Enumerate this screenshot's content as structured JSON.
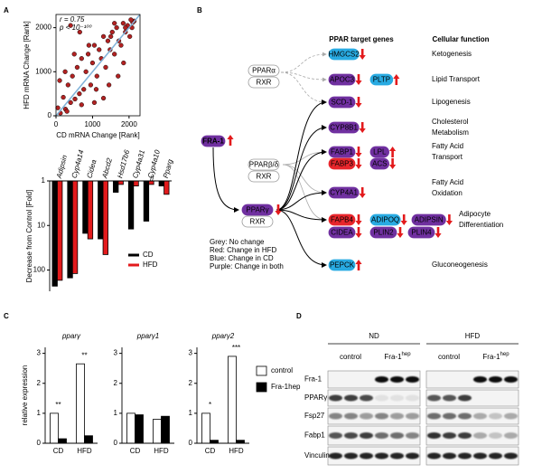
{
  "panel_labels": [
    "A",
    "B",
    "C",
    "D"
  ],
  "chart_data": [
    {
      "type": "scatter",
      "x": [
        50,
        120,
        200,
        260,
        330,
        400,
        450,
        520,
        580,
        640,
        700,
        760,
        820,
        880,
        950,
        1000,
        1050,
        1120,
        1180,
        1240,
        1300,
        1360,
        1420,
        1480,
        1540,
        1600,
        1660,
        1720,
        1780,
        1840,
        1900,
        1960,
        2020,
        2080,
        2140,
        100,
        300,
        500,
        700,
        900,
        1100,
        1300,
        1500,
        1700,
        1900,
        2100,
        250,
        650,
        1050,
        1450,
        1850,
        2050,
        1600,
        400
      ],
      "values": [
        180,
        60,
        420,
        150,
        700,
        300,
        900,
        380,
        1100,
        500,
        1300,
        600,
        1000,
        1400,
        700,
        1200,
        1600,
        900,
        1500,
        1300,
        1800,
        1100,
        1700,
        1500,
        1900,
        1400,
        2000,
        1700,
        1600,
        2100,
        1900,
        2050,
        1800,
        2000,
        2150,
        800,
        100,
        1400,
        250,
        1600,
        600,
        400,
        1800,
        900,
        2000,
        2120,
        1000,
        1900,
        300,
        700,
        1200,
        2180,
        2100,
        2050
      ],
      "color": "#b22222",
      "annotations": [
        "r = 0.75",
        "p < 10⁻¹⁰⁰"
      ],
      "xlabel": "CD mRNA Change [Rank]",
      "ylabel": "HFD mRNA Change [Rank]",
      "xlim": [
        0,
        2300
      ],
      "ylim": [
        0,
        2300
      ],
      "xticks": [
        0,
        1000,
        2000
      ],
      "yticks": [
        0,
        1000,
        2000
      ]
    },
    {
      "type": "bar",
      "categories": [
        "Adipsin",
        "Cyp4a14",
        "Cidea",
        "Abcd2",
        "Hsd17b6",
        "Cyp4a31",
        "Cyp4a10",
        "Pparg"
      ],
      "series": [
        {
          "name": "CD",
          "color": "#000000",
          "values": [
            230,
            150,
            15,
            20,
            1.8,
            12,
            8,
            1.3
          ]
        },
        {
          "name": "HFD",
          "color": "#e31a1c",
          "values": [
            170,
            120,
            20,
            45,
            1.2,
            1.3,
            1.2,
            2
          ]
        }
      ],
      "ylabel": "Decrease from Control [Fold]",
      "ylim": [
        1,
        300
      ],
      "yticks": [
        1,
        10,
        100
      ],
      "log_scale": true,
      "y_inverted": true,
      "legend": "lower right"
    },
    {
      "type": "bar",
      "title": "pparγ",
      "ylabel": "relative expression",
      "categories": [
        "CD",
        "HFD"
      ],
      "series": [
        {
          "color": "#ffffff",
          "values": [
            1.0,
            2.65
          ]
        },
        {
          "color": "#000000",
          "values": [
            0.15,
            0.25
          ]
        }
      ],
      "annotations": [
        "**",
        "**"
      ],
      "ylim": [
        0,
        3.2
      ],
      "yticks": [
        0,
        1,
        2,
        3
      ]
    },
    {
      "type": "bar",
      "title": "pparγ1",
      "categories": [
        "CD",
        "HFD"
      ],
      "series": [
        {
          "color": "#ffffff",
          "values": [
            1.0,
            0.8
          ]
        },
        {
          "color": "#000000",
          "values": [
            0.95,
            0.9
          ]
        }
      ],
      "ylim": [
        0,
        3.2
      ],
      "yticks": [
        0,
        1,
        2,
        3
      ]
    },
    {
      "type": "bar",
      "title": "pparγ2",
      "categories": [
        "CD",
        "HFD"
      ],
      "series": [
        {
          "name": "control",
          "color": "#ffffff",
          "values": [
            1.0,
            2.9
          ]
        },
        {
          "name": "Fra-1hep",
          "color": "#000000",
          "values": [
            0.1,
            0.1
          ]
        }
      ],
      "annotations": [
        "*",
        "***"
      ],
      "ylim": [
        0,
        3.2
      ],
      "yticks": [
        0,
        1,
        2,
        3
      ],
      "legend": "right"
    }
  ],
  "diagram": {
    "headers": [
      "PPAR target genes",
      "Cellular function"
    ],
    "activator": {
      "label": "FRA-1",
      "color": "#7030a0",
      "direction": "up"
    },
    "receptors": [
      {
        "names": [
          "PPARα",
          "RXR"
        ]
      },
      {
        "names": [
          "PPARβ/δ",
          "RXR"
        ]
      },
      {
        "names": [
          "PPARγ",
          "RXR"
        ],
        "color": "#7030a0",
        "direction": "down"
      }
    ],
    "genes": [
      {
        "label": "HMGCS2",
        "color": "#29abe2",
        "direction": "down"
      },
      {
        "label": "APOC3",
        "color": "#7030a0",
        "direction": "down"
      },
      {
        "label": "PLTP",
        "color": "#29abe2",
        "direction": "up"
      },
      {
        "label": "SCD-1",
        "color": "#7030a0",
        "direction": "down"
      },
      {
        "label": "CYP8B1",
        "color": "#7030a0",
        "direction": "down"
      },
      {
        "label": "FABP1",
        "color": "#7030a0",
        "direction": "down"
      },
      {
        "label": "LPL",
        "color": "#7030a0",
        "direction": "up"
      },
      {
        "label": "FABP3",
        "color": "#e8262c",
        "direction": "down"
      },
      {
        "label": "ACS",
        "color": "#7030a0",
        "direction": "down"
      },
      {
        "label": "CYP4A1",
        "color": "#7030a0",
        "direction": "down"
      },
      {
        "label": "FAPB4",
        "color": "#e8262c",
        "direction": "down"
      },
      {
        "label": "ADIPOQ",
        "color": "#29abe2",
        "direction": "down"
      },
      {
        "label": "ADIPSIN",
        "color": "#7030a0",
        "direction": "down"
      },
      {
        "label": "CIDEA",
        "color": "#7030a0",
        "direction": "down"
      },
      {
        "label": "PLIN2",
        "color": "#7030a0",
        "direction": "down"
      },
      {
        "label": "PLIN4",
        "color": "#7030a0",
        "direction": "down"
      },
      {
        "label": "PEPCK",
        "color": "#29abe2",
        "direction": "up"
      }
    ],
    "functions": [
      [
        "Ketogenesis"
      ],
      [
        "Lipid Transport"
      ],
      [
        "Lipogenesis"
      ],
      [
        "Cholesterol",
        "Metabolism"
      ],
      [
        "Fatty Acid",
        "Transport"
      ],
      [
        "Fatty Acid",
        "Oxidation"
      ],
      [
        "Adipocyte",
        "Differentiation"
      ],
      [
        "Gluconeogenesis"
      ]
    ],
    "legend": [
      {
        "text": "Grey: No change",
        "color": "#999999"
      },
      {
        "text": "Red: Change in HFD",
        "color": "#e31a1c"
      },
      {
        "text": "Blue: Change in CD",
        "color": "#29abe2"
      },
      {
        "text": "Purple: Change in both",
        "color": "#7030a0"
      }
    ]
  },
  "blot": {
    "groups": [
      {
        "name": "ND",
        "lanes": [
          {
            "text": "control"
          },
          {
            "text": "Fra-1",
            "sup": "hep"
          }
        ]
      },
      {
        "name": "HFD",
        "lanes": [
          {
            "text": "control"
          },
          {
            "text": "Fra-1",
            "sup": "hep"
          }
        ]
      }
    ],
    "rows": [
      "Fra-1",
      "PPARγ",
      "Fsp27",
      "Fabp1",
      "Vinculin"
    ]
  }
}
